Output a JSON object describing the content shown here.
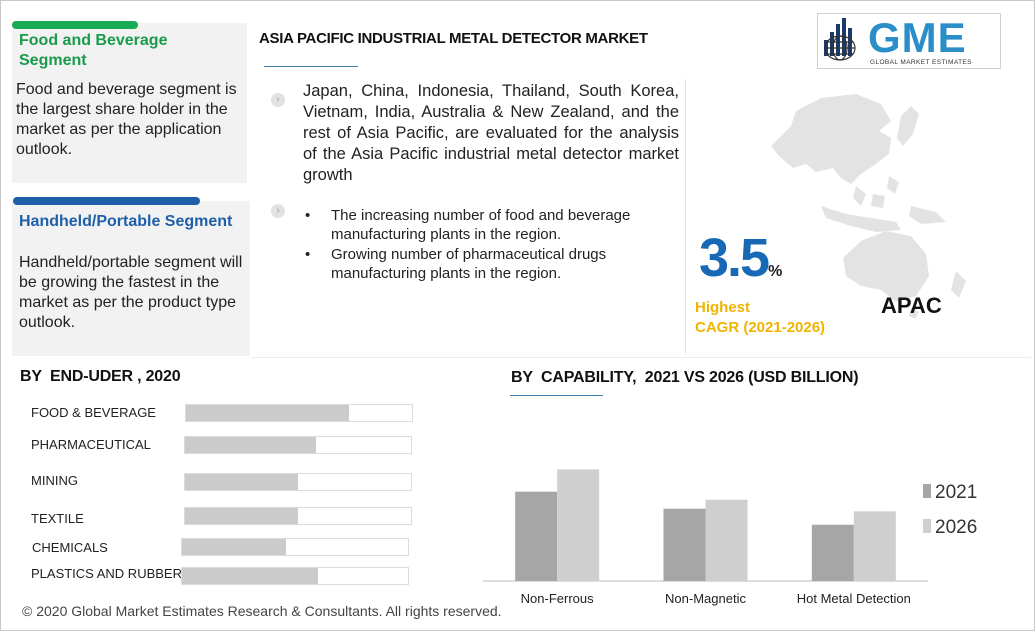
{
  "panels": {
    "food": {
      "title": "Food and Beverage Segment",
      "text": "Food and beverage segment is the largest share holder in the market as per the application outlook."
    },
    "handheld": {
      "title": "Handheld/Portable Segment",
      "text": "Handheld/portable segment will be growing the fastest in the market as per the product type outlook."
    }
  },
  "header": {
    "title": "ASIA PACIFIC INDUSTRIAL METAL DETECTOR MARKET",
    "logo_text": "GME",
    "logo_subtext": "GLOBAL MARKET ESTIMATES"
  },
  "summary": {
    "paragraph": "Japan, China, Indonesia, Thailand, South Korea, Vietnam, India, Australia & New Zealand, and the rest of Asia Pacific, are evaluated for the analysis of the Asia Pacific industrial metal detector market  growth",
    "bullets": [
      "The increasing number of food and beverage manufacturing plants in the region.",
      "Growing number of pharmaceutical drugs manufacturing plants in the region."
    ],
    "bullet_char": "•"
  },
  "cagr": {
    "value": "3.5",
    "unit": "%",
    "label_line1": "Highest",
    "label_line2": "CAGR (2021-2026)",
    "region": "APAC"
  },
  "colors": {
    "green": "#1aaa55",
    "green_text": "#1a9a4a",
    "blue": "#1f5fa8",
    "blue_text": "#1f5fa8",
    "accent_blue": "#1869b5",
    "yellow": "#f0b400",
    "bar_2021": "#a6a6a6",
    "bar_2026": "#cfcfcf",
    "map_gray": "#e3e3e3"
  },
  "chart_data": [
    {
      "type": "bar",
      "title": "BY  END-UDER , 2020",
      "orientation": "horizontal",
      "categories": [
        "FOOD & BEVERAGE",
        "PHARMACEUTICAL",
        "MINING",
        "TEXTILE",
        "CHEMICALS",
        "PLASTICS AND RUBBER"
      ],
      "values": [
        72,
        58,
        50,
        50,
        46,
        60
      ],
      "xlim": [
        0,
        100
      ]
    },
    {
      "type": "bar",
      "title": "BY  CAPABILITY,  2021 VS 2026 (USD BILLION)",
      "categories": [
        "Non-Ferrous",
        "Non-Magnetic",
        "Hot Metal Detection"
      ],
      "series": [
        {
          "name": "2021",
          "values": [
            100,
            81,
            63
          ]
        },
        {
          "name": "2026",
          "values": [
            125,
            91,
            78
          ]
        }
      ],
      "ylim": [
        0,
        140
      ],
      "legend": "right"
    }
  ],
  "footer": "© 2020 Global Market Estimates Research & Consultants. All rights reserved."
}
